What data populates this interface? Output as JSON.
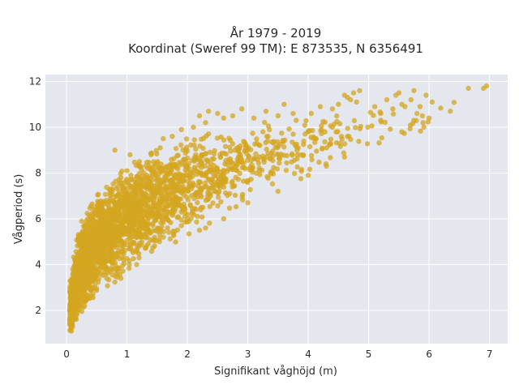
{
  "chart_data": {
    "type": "scatter",
    "title": "År 1979 - 2019",
    "subtitle": "Koordinat (Sweref 99 TM): E 873535, N 6356491",
    "xlabel": "Signifikant våghöjd (m)",
    "ylabel": "Vågperiod (s)",
    "xlim": [
      -0.35,
      7.3
    ],
    "ylim": [
      0.55,
      12.3
    ],
    "xticks": [
      0,
      1,
      2,
      3,
      4,
      5,
      6,
      7
    ],
    "yticks": [
      2,
      4,
      6,
      8,
      10,
      12
    ],
    "grid": true,
    "legend": "none",
    "series": [
      {
        "color": "#d4a520",
        "envelope": {
          "hs": [
            0.05,
            0.2,
            0.5,
            1.0,
            1.5,
            2.0,
            2.5,
            3.0,
            3.5,
            4.0,
            4.5,
            5.0,
            5.5,
            6.0,
            7.0
          ],
          "tp_lower": [
            1.1,
            1.8,
            2.7,
            3.6,
            4.5,
            5.3,
            6.0,
            6.7,
            7.3,
            7.9,
            8.4,
            8.9,
            9.4,
            10.0,
            11.7
          ],
          "tp_upper": [
            3.4,
            5.6,
            7.0,
            8.3,
            9.0,
            9.5,
            9.8,
            10.1,
            10.3,
            10.5,
            10.8,
            11.0,
            11.2,
            11.4,
            11.9
          ],
          "tp_center": [
            2.0,
            3.6,
            5.0,
            6.0,
            6.9,
            7.5,
            8.1,
            8.5,
            8.9,
            9.3,
            9.6,
            9.9,
            10.2,
            10.6,
            11.8
          ]
        },
        "points": [
          [
            0.08,
            1.1
          ],
          [
            0.05,
            1.4
          ],
          [
            0.1,
            1.3
          ],
          [
            0.12,
            2.0
          ],
          [
            0.15,
            3.5
          ],
          [
            0.22,
            4.3
          ],
          [
            0.3,
            5.3
          ],
          [
            0.4,
            6.1
          ],
          [
            0.35,
            2.5
          ],
          [
            0.5,
            6.4
          ],
          [
            0.6,
            6.6
          ],
          [
            0.75,
            7.3
          ],
          [
            0.9,
            7.8
          ],
          [
            0.8,
            9.0
          ],
          [
            1.0,
            8.1
          ],
          [
            1.05,
            8.8
          ],
          [
            1.2,
            8.3
          ],
          [
            1.4,
            8.8
          ],
          [
            1.55,
            9.1
          ],
          [
            1.6,
            9.5
          ],
          [
            1.75,
            9.6
          ],
          [
            1.9,
            9.9
          ],
          [
            2.1,
            10.0
          ],
          [
            2.2,
            10.5
          ],
          [
            2.3,
            10.2
          ],
          [
            2.35,
            10.7
          ],
          [
            2.5,
            10.6
          ],
          [
            2.6,
            10.4
          ],
          [
            2.75,
            10.5
          ],
          [
            2.9,
            10.8
          ],
          [
            3.1,
            10.4
          ],
          [
            3.3,
            10.7
          ],
          [
            3.5,
            10.5
          ],
          [
            3.6,
            11.0
          ],
          [
            3.75,
            10.6
          ],
          [
            3.8,
            10.3
          ],
          [
            4.05,
            10.6
          ],
          [
            4.2,
            10.9
          ],
          [
            4.4,
            10.8
          ],
          [
            4.5,
            11.0
          ],
          [
            4.6,
            11.4
          ],
          [
            4.7,
            11.2
          ],
          [
            4.8,
            11.1
          ],
          [
            4.85,
            11.6
          ],
          [
            4.75,
            11.5
          ],
          [
            4.65,
            11.3
          ],
          [
            5.1,
            10.9
          ],
          [
            5.2,
            10.6
          ],
          [
            5.3,
            11.2
          ],
          [
            5.4,
            10.8
          ],
          [
            5.45,
            11.4
          ],
          [
            5.5,
            11.5
          ],
          [
            5.55,
            11.0
          ],
          [
            5.6,
            10.9
          ],
          [
            5.7,
            11.2
          ],
          [
            5.75,
            11.6
          ],
          [
            5.8,
            10.6
          ],
          [
            5.85,
            10.9
          ],
          [
            5.9,
            10.2
          ],
          [
            5.95,
            11.4
          ],
          [
            6.0,
            10.4
          ],
          [
            6.05,
            11.1
          ],
          [
            6.35,
            10.7
          ],
          [
            6.65,
            11.7
          ],
          [
            6.95,
            11.8
          ],
          [
            6.9,
            11.7
          ],
          [
            0.9,
            3.4
          ],
          [
            1.2,
            4.3
          ],
          [
            1.6,
            5.2
          ],
          [
            2.2,
            5.5
          ],
          [
            2.3,
            5.6
          ],
          [
            2.6,
            6.0
          ],
          [
            3.0,
            6.7
          ],
          [
            3.5,
            7.2
          ],
          [
            4.0,
            7.9
          ],
          [
            4.3,
            8.3
          ],
          [
            2.7,
            7.1
          ],
          [
            2.5,
            7.5
          ],
          [
            4.55,
            9.6
          ],
          [
            4.0,
            9.8
          ],
          [
            3.25,
            9.8
          ],
          [
            3.75,
            9.7
          ],
          [
            4.4,
            10.0
          ],
          [
            5.2,
            10.3
          ],
          [
            4.6,
            8.7
          ],
          [
            1.3,
            5.6
          ],
          [
            1.9,
            6.3
          ],
          [
            0.45,
            3.7
          ],
          [
            0.2,
            5.0
          ],
          [
            0.25,
            5.9
          ]
        ]
      }
    ]
  }
}
